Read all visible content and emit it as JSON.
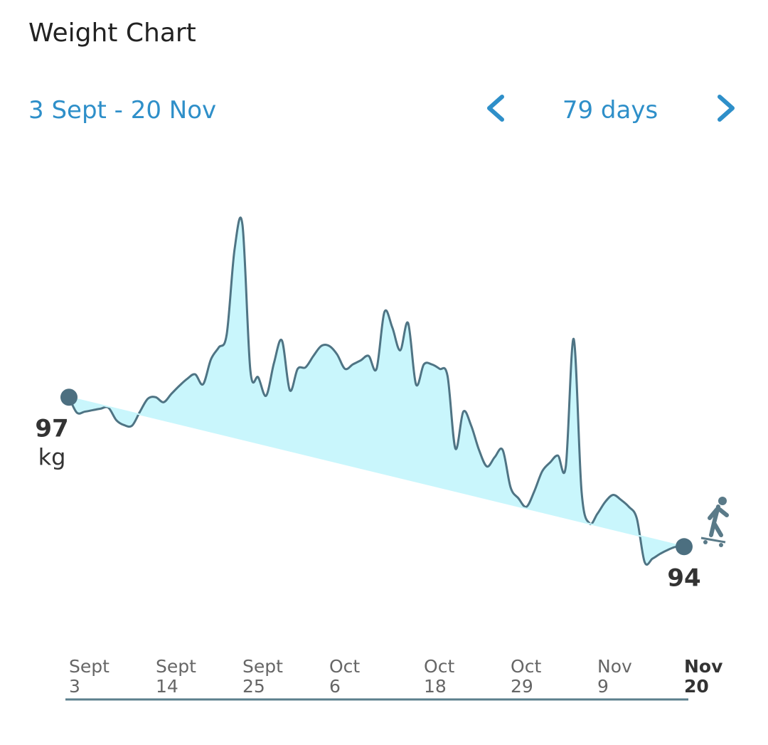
{
  "header": {
    "title": "Weight Chart",
    "range": "3 Sept - 20 Nov",
    "period": "79 days"
  },
  "chart_data": {
    "type": "area",
    "unit": "kg",
    "values": [
      97,
      96.69,
      96.71,
      96.74,
      96.77,
      96.79,
      96.54,
      96.44,
      96.43,
      96.71,
      96.97,
      97.0,
      96.9,
      97.07,
      97.23,
      97.37,
      97.46,
      97.26,
      97.76,
      98.0,
      98.26,
      99.97,
      100.46,
      97.54,
      97.4,
      97.03,
      97.69,
      98.14,
      97.14,
      97.57,
      97.6,
      97.83,
      98.03,
      98.03,
      97.86,
      97.57,
      97.66,
      97.74,
      97.83,
      97.57,
      98.71,
      98.4,
      97.94,
      98.49,
      97.26,
      97.66,
      97.66,
      97.57,
      97.43,
      95.97,
      96.71,
      96.43,
      95.94,
      95.61,
      95.8,
      95.94,
      95.19,
      94.97,
      94.8,
      95.11,
      95.51,
      95.69,
      95.83,
      95.61,
      98.17,
      95.11,
      94.47,
      94.66,
      94.9,
      95.04,
      94.94,
      94.8,
      94.57,
      93.69,
      93.76,
      93.86,
      93.94,
      94.0,
      94
    ],
    "color": "#4f7484",
    "fill": "#c9f6fc",
    "xlim": [
      0,
      78
    ],
    "xticks": [
      {
        "value": 0,
        "label": "Sept 3"
      },
      {
        "value": 11,
        "label": "Sept 14"
      },
      {
        "value": 22,
        "label": "Sept 25"
      },
      {
        "value": 33,
        "label": "Oct 6"
      },
      {
        "value": 45,
        "label": "Oct 18"
      },
      {
        "value": 56,
        "label": "Oct 29"
      },
      {
        "value": 67,
        "label": "Nov 9"
      },
      {
        "value": 78,
        "label": "Nov 20"
      }
    ]
  }
}
